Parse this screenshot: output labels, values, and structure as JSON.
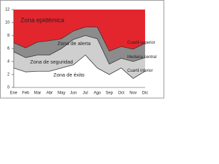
{
  "chart_data": {
    "type": "epidemic-channel",
    "categories": [
      "Ene",
      "Feb",
      "Mar",
      "Abr",
      "May",
      "Jun",
      "Jul",
      "Ago",
      "Sep",
      "Oct",
      "Nov",
      "Dic"
    ],
    "series": [
      {
        "name": "Cuartil superior",
        "color": "#8c8c8c",
        "values": [
          6.9,
          6.1,
          7,
          7.2,
          7.5,
          8.7,
          9.3,
          9.3,
          5.6,
          6.3,
          5.9,
          6.8
        ]
      },
      {
        "name": "Mediana central",
        "color": "#cfcfcf",
        "values": [
          5.5,
          4.6,
          5,
          5,
          6,
          7.4,
          8,
          7.5,
          3.6,
          4.5,
          4,
          4.6
        ]
      },
      {
        "name": "Cuartil inferior",
        "color": "#ffffff",
        "values": [
          3,
          2.4,
          2.5,
          2.5,
          3,
          3.5,
          5,
          3,
          2,
          3,
          1.4,
          2.5
        ]
      }
    ],
    "area_above_color": "#e3262d",
    "zones": [
      "Zona epidémica",
      "Zona de alerta",
      "Zona de seguridad",
      "Zona de éxito"
    ],
    "ylim": [
      0,
      12
    ],
    "yticks": [
      0,
      2,
      4,
      6,
      8,
      10,
      12
    ]
  }
}
